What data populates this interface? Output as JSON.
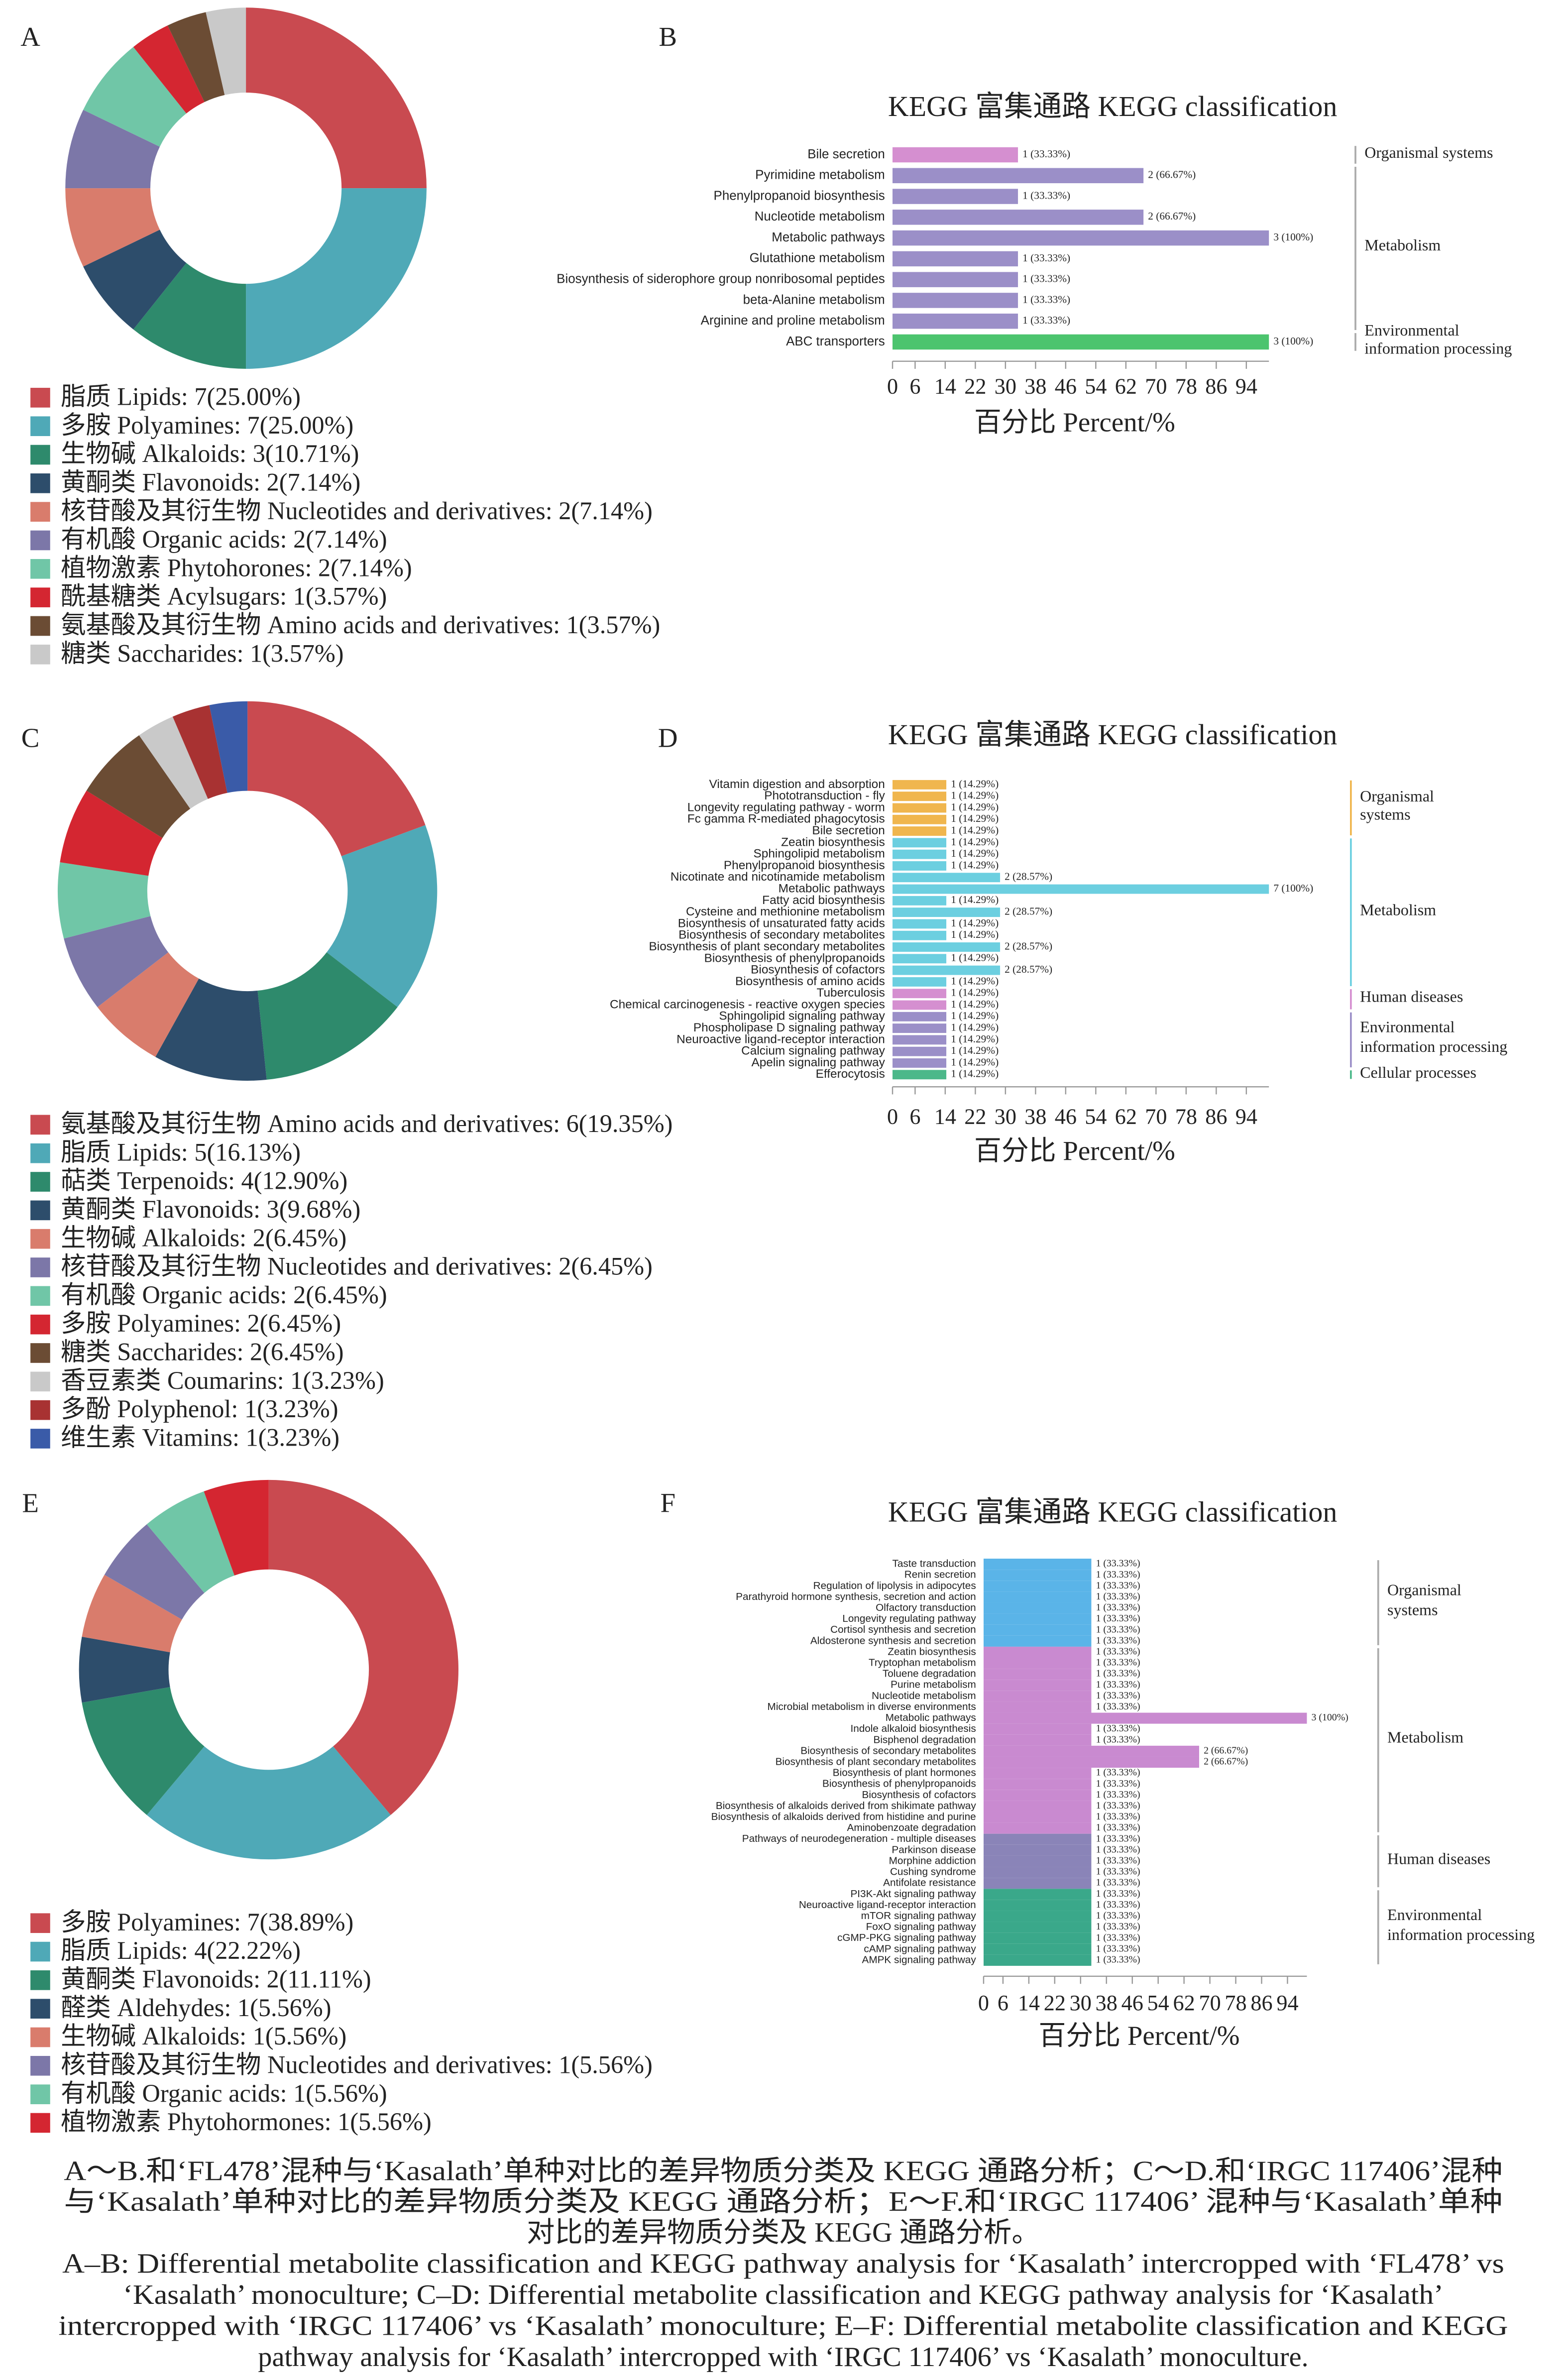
{
  "chart_data": [
    {
      "type": "pie",
      "panel": "A",
      "categories": [
        "脂质 Lipids: 7(25.00%)",
        "多胺 Polyamines: 7(25.00%)",
        "生物碱 Alkaloids: 3(10.71%)",
        "黄酮类 Flavonoids: 2(7.14%)",
        "核苷酸及其衍生物 Nucleotides and derivatives: 2(7.14%)",
        "有机酸 Organic acids: 2(7.14%)",
        "植物激素 Phytohorones: 2(7.14%)",
        "酰基糖类 Acylsugars: 1(3.57%)",
        "氨基酸及其衍生物 Amino acids and derivatives: 1(3.57%)",
        "糖类 Saccharides: 1(3.57%)"
      ],
      "values": [
        7,
        7,
        3,
        2,
        2,
        2,
        2,
        1,
        1,
        1
      ],
      "colors": [
        "#c94a50",
        "#4fa9b7",
        "#2e8a6c",
        "#2d4d6b",
        "#d97c6c",
        "#7c77a8",
        "#70c6a7",
        "#d42631",
        "#6b4c34",
        "#c9c9c9"
      ]
    },
    {
      "type": "bar",
      "panel": "B",
      "orientation": "horizontal",
      "title": "KEGG 富集通路 KEGG classification",
      "xlabel": "百分比 Percent/%",
      "xlim": [
        0,
        100
      ],
      "xticks": [
        0,
        6,
        14,
        22,
        30,
        38,
        46,
        54,
        62,
        70,
        78,
        86,
        94
      ],
      "group_line_colored": false,
      "series": [
        {
          "name": "Organismal systems",
          "color": "#d58fd0",
          "categories": [
            "Bile secretion"
          ],
          "values": [
            33.33
          ],
          "value_labels": [
            "1 (33.33%)"
          ]
        },
        {
          "name": "Metabolism",
          "color": "#9b8fc8",
          "categories": [
            "Pyrimidine metabolism",
            "Phenylpropanoid biosynthesis",
            "Nucleotide metabolism",
            "Metabolic pathways",
            "Glutathione metabolism",
            "Biosynthesis of siderophore group nonribosomal peptides",
            "beta-Alanine metabolism",
            "Arginine and proline metabolism"
          ],
          "values": [
            66.67,
            33.33,
            66.67,
            100,
            33.33,
            33.33,
            33.33,
            33.33
          ],
          "value_labels": [
            "2 (66.67%)",
            "1 (33.33%)",
            "2 (66.67%)",
            "3 (100%)",
            "1 (33.33%)",
            "1 (33.33%)",
            "1 (33.33%)",
            "1 (33.33%)"
          ]
        },
        {
          "name": "Environmental\ninformation processing",
          "color": "#4cc46e",
          "categories": [
            "ABC transporters"
          ],
          "values": [
            100
          ],
          "value_labels": [
            "3 (100%)"
          ]
        }
      ]
    },
    {
      "type": "pie",
      "panel": "C",
      "categories": [
        "氨基酸及其衍生物 Amino acids and derivatives: 6(19.35%)",
        "脂质 Lipids: 5(16.13%)",
        "萜类 Terpenoids: 4(12.90%)",
        "黄酮类 Flavonoids: 3(9.68%)",
        "生物碱 Alkaloids: 2(6.45%)",
        "核苷酸及其衍生物 Nucleotides and derivatives: 2(6.45%)",
        "有机酸 Organic acids: 2(6.45%)",
        "多胺 Polyamines: 2(6.45%)",
        "糖类 Saccharides: 2(6.45%)",
        "香豆素类 Coumarins: 1(3.23%)",
        "多酚 Polyphenol: 1(3.23%)",
        "维生素 Vitamins: 1(3.23%)"
      ],
      "values": [
        6,
        5,
        4,
        3,
        2,
        2,
        2,
        2,
        2,
        1,
        1,
        1
      ],
      "colors": [
        "#c94a50",
        "#4fa9b7",
        "#2e8a6c",
        "#2d4d6b",
        "#d97c6c",
        "#7c77a8",
        "#70c6a7",
        "#d42631",
        "#6b4c34",
        "#c9c9c9",
        "#a83232",
        "#3a5ba8"
      ]
    },
    {
      "type": "bar",
      "panel": "D",
      "orientation": "horizontal",
      "title": "KEGG 富集通路 KEGG classification",
      "xlabel": "百分比 Percent/%",
      "xlim": [
        0,
        100
      ],
      "xticks": [
        0,
        6,
        14,
        22,
        30,
        38,
        46,
        54,
        62,
        70,
        78,
        86,
        94
      ],
      "group_line_colored": true,
      "series": [
        {
          "name": "Organismal\nsystems",
          "color": "#f0b64e",
          "categories": [
            "Vitamin digestion and absorption",
            "Phototransduction - fly",
            "Longevity regulating pathway - worm",
            "Fc gamma R-mediated phagocytosis",
            "Bile secretion"
          ],
          "values": [
            14.29,
            14.29,
            14.29,
            14.29,
            14.29
          ],
          "value_labels": [
            "1 (14.29%)",
            "1 (14.29%)",
            "1 (14.29%)",
            "1 (14.29%)",
            "1 (14.29%)"
          ]
        },
        {
          "name": "Metabolism",
          "color": "#6ccfe0",
          "categories": [
            "Zeatin biosynthesis",
            "Sphingolipid metabolism",
            "Phenylpropanoid biosynthesis",
            "Nicotinate and nicotinamide metabolism",
            "Metabolic pathways",
            "Fatty acid biosynthesis",
            "Cysteine and methionine metabolism",
            "Biosynthesis of unsaturated fatty acids",
            "Biosynthesis of secondary metabolites",
            "Biosynthesis of plant secondary metabolites",
            "Biosynthesis of phenylpropanoids",
            "Biosynthesis of cofactors",
            "Biosynthesis of amino acids"
          ],
          "values": [
            14.29,
            14.29,
            14.29,
            28.57,
            100,
            14.29,
            28.57,
            14.29,
            14.29,
            28.57,
            14.29,
            28.57,
            14.29
          ],
          "value_labels": [
            "1 (14.29%)",
            "1 (14.29%)",
            "1 (14.29%)",
            "2 (28.57%)",
            "7 (100%)",
            "1 (14.29%)",
            "2 (28.57%)",
            "1 (14.29%)",
            "1 (14.29%)",
            "2 (28.57%)",
            "1 (14.29%)",
            "2 (28.57%)",
            "1 (14.29%)"
          ]
        },
        {
          "name": "Human diseases",
          "color": "#d58fd0",
          "categories": [
            "Tuberculosis",
            "Chemical carcinogenesis - reactive oxygen species"
          ],
          "values": [
            14.29,
            14.29
          ],
          "value_labels": [
            "1 (14.29%)",
            "1 (14.29%)"
          ]
        },
        {
          "name": "Environmental\ninformation processing",
          "color": "#9b8fc8",
          "categories": [
            "Sphingolipid signaling pathway",
            "Phospholipase D signaling pathway",
            "Neuroactive ligand-receptor interaction",
            "Calcium signaling pathway",
            "Apelin signaling pathway"
          ],
          "values": [
            14.29,
            14.29,
            14.29,
            14.29,
            14.29
          ],
          "value_labels": [
            "1 (14.29%)",
            "1 (14.29%)",
            "1 (14.29%)",
            "1 (14.29%)",
            "1 (14.29%)"
          ]
        },
        {
          "name": "Cellular processes",
          "color": "#4cb88a",
          "categories": [
            "Efferocytosis"
          ],
          "values": [
            14.29
          ],
          "value_labels": [
            "1 (14.29%)"
          ]
        }
      ]
    },
    {
      "type": "pie",
      "panel": "E",
      "categories": [
        "多胺 Polyamines: 7(38.89%)",
        "脂质 Lipids: 4(22.22%)",
        "黄酮类 Flavonoids: 2(11.11%)",
        "醛类 Aldehydes: 1(5.56%)",
        "生物碱 Alkaloids: 1(5.56%)",
        "核苷酸及其衍生物 Nucleotides and derivatives: 1(5.56%)",
        "有机酸 Organic acids: 1(5.56%)",
        "植物激素 Phytohormones: 1(5.56%)"
      ],
      "values": [
        7,
        4,
        2,
        1,
        1,
        1,
        1,
        1
      ],
      "colors": [
        "#c94a50",
        "#4fa9b7",
        "#2e8a6c",
        "#2d4d6b",
        "#d97c6c",
        "#7c77a8",
        "#70c6a7",
        "#d42631"
      ]
    },
    {
      "type": "bar",
      "panel": "F",
      "orientation": "horizontal",
      "title": "KEGG 富集通路 KEGG classification",
      "xlabel": "百分比 Percent/%",
      "xlim": [
        0,
        100
      ],
      "xticks": [
        0,
        6,
        14,
        22,
        30,
        38,
        46,
        54,
        62,
        70,
        78,
        86,
        94
      ],
      "group_line_colored": false,
      "series": [
        {
          "name": "Organismal\nsystems",
          "color": "#5ab4e8",
          "categories": [
            "Taste transduction",
            "Renin secretion",
            "Regulation of lipolysis in adipocytes",
            "Parathyroid hormone synthesis, secretion and action",
            "Olfactory transduction",
            "Longevity regulating pathway",
            "Cortisol synthesis and secretion",
            "Aldosterone synthesis and secretion"
          ],
          "values": [
            33.33,
            33.33,
            33.33,
            33.33,
            33.33,
            33.33,
            33.33,
            33.33
          ],
          "value_labels": [
            "1 (33.33%)",
            "1 (33.33%)",
            "1 (33.33%)",
            "1 (33.33%)",
            "1 (33.33%)",
            "1 (33.33%)",
            "1 (33.33%)",
            "1 (33.33%)"
          ]
        },
        {
          "name": "Metabolism",
          "color": "#c98ad0",
          "categories": [
            "Zeatin biosynthesis",
            "Tryptophan metabolism",
            "Toluene degradation",
            "Purine metabolism",
            "Nucleotide metabolism",
            "Microbial metabolism in diverse environments",
            "Metabolic pathways",
            "Indole alkaloid biosynthesis",
            "Bisphenol degradation",
            "Biosynthesis of secondary metabolites",
            "Biosynthesis of plant secondary metabolites",
            "Biosynthesis of plant hormones",
            "Biosynthesis of phenylpropanoids",
            "Biosynthesis of cofactors",
            "Biosynthesis of alkaloids derived from shikimate pathway",
            "Biosynthesis of alkaloids derived from histidine and purine",
            "Aminobenzoate degradation"
          ],
          "values": [
            33.33,
            33.33,
            33.33,
            33.33,
            33.33,
            33.33,
            100,
            33.33,
            33.33,
            66.67,
            66.67,
            33.33,
            33.33,
            33.33,
            33.33,
            33.33,
            33.33
          ],
          "value_labels": [
            "1 (33.33%)",
            "1 (33.33%)",
            "1 (33.33%)",
            "1 (33.33%)",
            "1 (33.33%)",
            "1 (33.33%)",
            "3 (100%)",
            "1 (33.33%)",
            "1 (33.33%)",
            "2 (66.67%)",
            "2 (66.67%)",
            "1 (33.33%)",
            "1 (33.33%)",
            "1 (33.33%)",
            "1 (33.33%)",
            "1 (33.33%)",
            "1 (33.33%)"
          ]
        },
        {
          "name": "Human diseases",
          "color": "#8a84b8",
          "categories": [
            "Pathways of neurodegeneration - multiple diseases",
            "Parkinson disease",
            "Morphine addiction",
            "Cushing syndrome",
            "Antifolate resistance"
          ],
          "values": [
            33.33,
            33.33,
            33.33,
            33.33,
            33.33
          ],
          "value_labels": [
            "1 (33.33%)",
            "1 (33.33%)",
            "1 (33.33%)",
            "1 (33.33%)",
            "1 (33.33%)"
          ]
        },
        {
          "name": "Environmental\ninformation processing",
          "color": "#3aa88a",
          "categories": [
            "PI3K-Akt signaling pathway",
            "Neuroactive ligand-receptor interaction",
            "mTOR signaling pathway",
            "FoxO signaling pathway",
            "cGMP-PKG signaling pathway",
            "cAMP signaling pathway",
            "AMPK signaling pathway"
          ],
          "values": [
            33.33,
            33.33,
            33.33,
            33.33,
            33.33,
            33.33,
            33.33
          ],
          "value_labels": [
            "1 (33.33%)",
            "1 (33.33%)",
            "1 (33.33%)",
            "1 (33.33%)",
            "1 (33.33%)",
            "1 (33.33%)",
            "1 (33.33%)"
          ]
        }
      ]
    }
  ],
  "caption": {
    "zh": [
      "A～B.和‘FL478’混种与‘Kasalath’单种对比的差异物质分类及 KEGG 通路分析；C～D.和‘IRGC 117406’混种",
      "与‘Kasalath’单种对比的差异物质分类及 KEGG 通路分析；E～F.和‘IRGC 117406’ 混种与‘Kasalath’单种",
      "对比的差异物质分类及 KEGG 通路分析。"
    ],
    "en": [
      "A–B: Differential metabolite classification and KEGG pathway analysis for ‘Kasalath’ intercropped with ‘FL478’ vs",
      "‘Kasalath’ monoculture; C–D: Differential metabolite classification and KEGG pathway analysis for ‘Kasalath’",
      "intercropped with ‘IRGC 117406’ vs ‘Kasalath’ monoculture; E–F: Differential metabolite classification and KEGG",
      "pathway analysis for ‘Kasalath’ intercropped with ‘IRGC 117406’ vs ‘Kasalath’ monoculture."
    ]
  }
}
